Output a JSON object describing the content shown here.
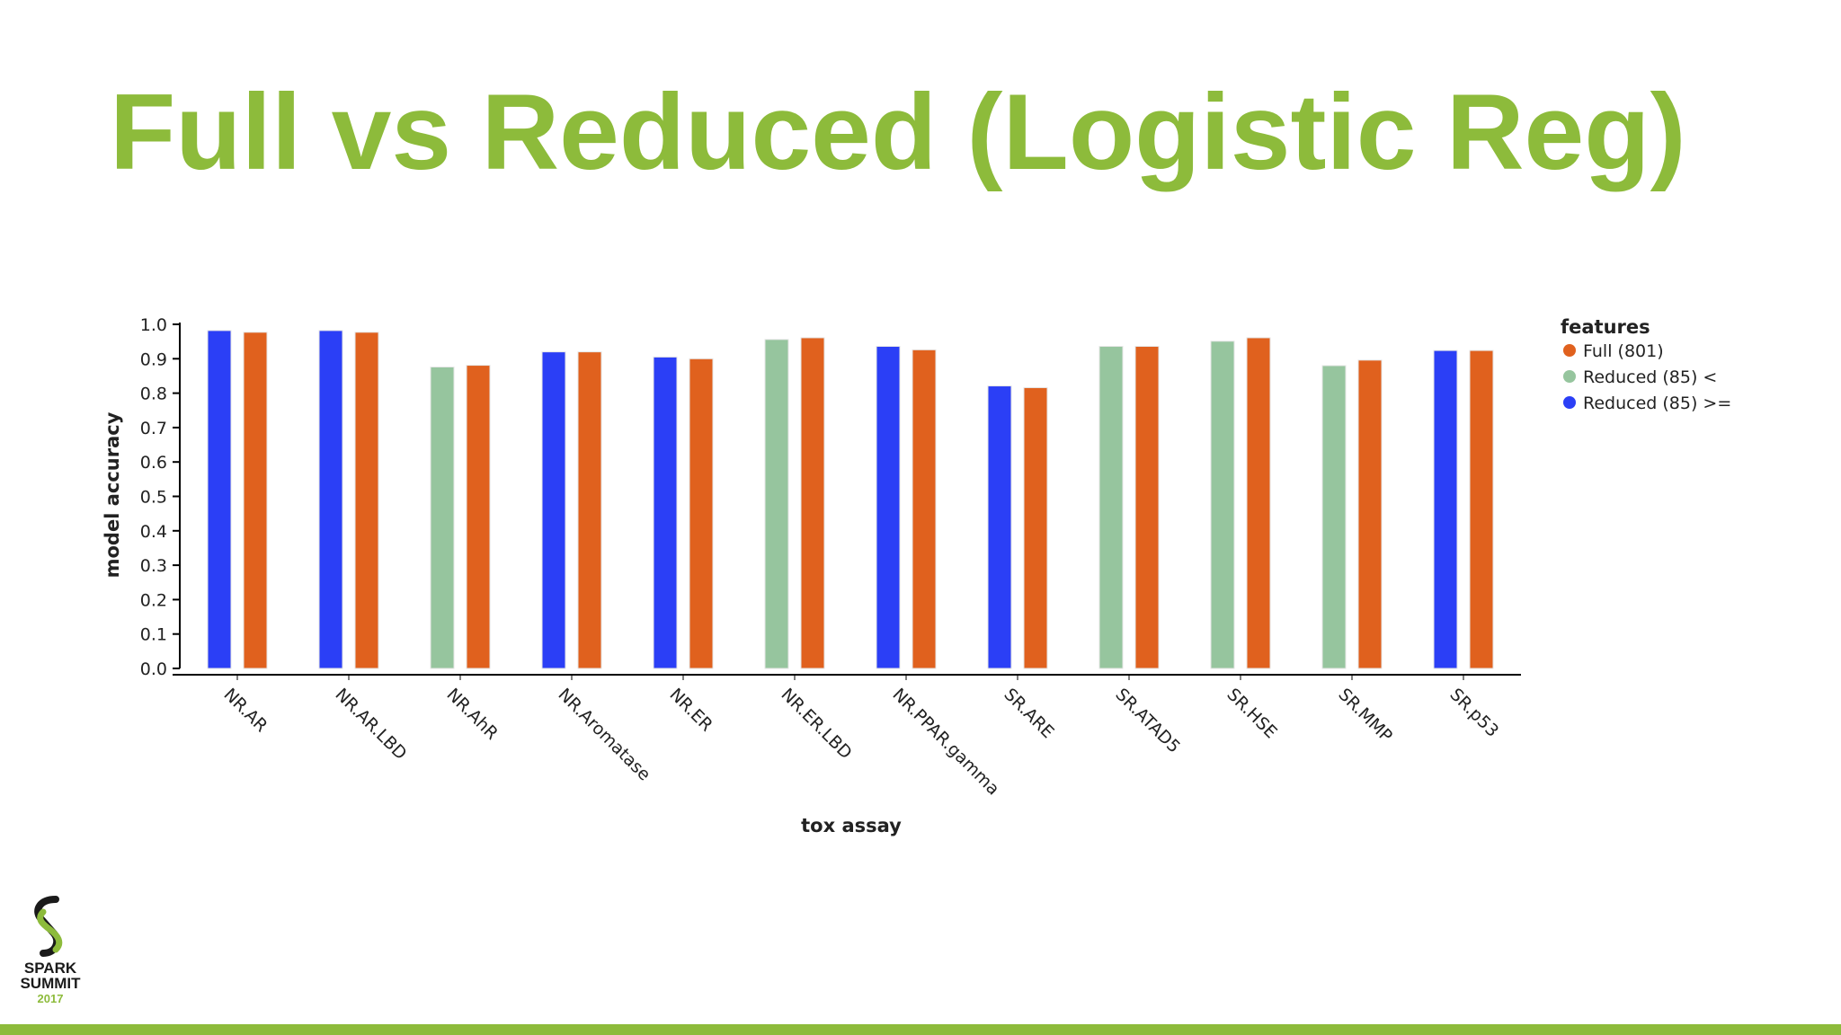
{
  "slide": {
    "title": "Full vs Reduced (Logistic Reg)",
    "accent_color": "#8dbb3b"
  },
  "logo": {
    "line1": "SPARK",
    "line2": "SUMMIT",
    "year": "2017",
    "icon": "spark-summit-logo-icon"
  },
  "chart_data": {
    "type": "bar",
    "xlabel": "tox assay",
    "ylabel": "model accuracy",
    "ylim": [
      0,
      1.0
    ],
    "yticks": [
      "0.0",
      "0.1",
      "0.2",
      "0.3",
      "0.4",
      "0.5",
      "0.6",
      "0.7",
      "0.8",
      "0.9",
      "1.0"
    ],
    "grid": false,
    "legend_position": "right",
    "legend": {
      "title": "features",
      "entries": [
        {
          "label": "Full (801)",
          "color": "#e0611e"
        },
        {
          "label": "Reduced (85) <",
          "color": "#96c59e"
        },
        {
          "label": "Reduced (85) >=",
          "color": "#2b3ff6"
        }
      ]
    },
    "categories": [
      "NR.AR",
      "NR.AR.LBD",
      "NR.AhR",
      "NR.Aromatase",
      "NR.ER",
      "NR.ER.LBD",
      "NR.PPAR.gamma",
      "SR.ARE",
      "SR.ATAD5",
      "SR.HSE",
      "SR.MMP",
      "SR.p53"
    ],
    "series": [
      {
        "name": "Reduced (85)",
        "values": [
          0.982,
          0.982,
          0.876,
          0.92,
          0.905,
          0.956,
          0.936,
          0.821,
          0.936,
          0.951,
          0.88,
          0.924
        ],
        "groups": [
          ">=",
          ">=",
          "<",
          ">=",
          ">=",
          "<",
          ">=",
          ">=",
          "<",
          "<",
          "<",
          ">="
        ]
      },
      {
        "name": "Full (801)",
        "values": [
          0.977,
          0.977,
          0.881,
          0.92,
          0.9,
          0.961,
          0.926,
          0.816,
          0.936,
          0.961,
          0.896,
          0.924
        ]
      }
    ]
  }
}
